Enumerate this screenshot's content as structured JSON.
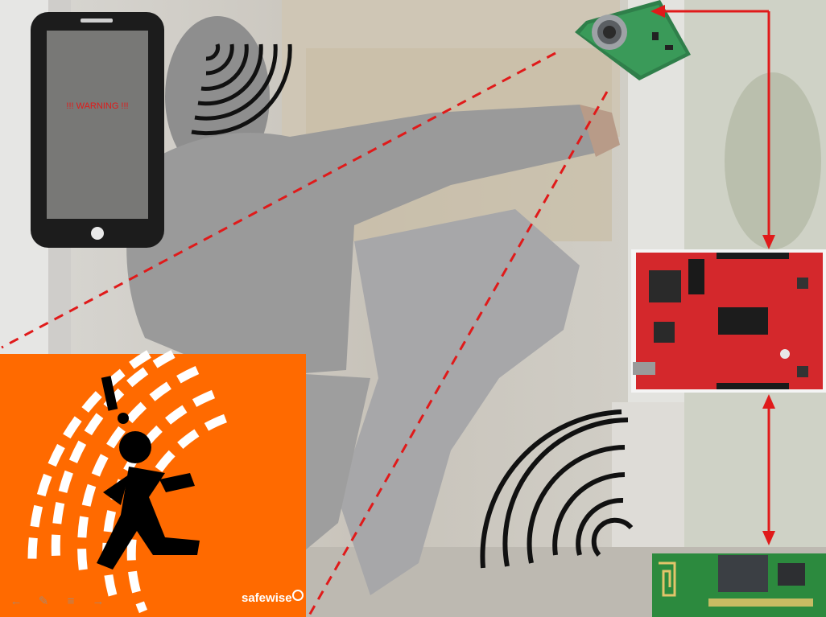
{
  "phone": {
    "screen_text": "!!! WARNING !!!"
  },
  "sign": {
    "brand_text": "safewise"
  },
  "colors": {
    "alert_red": "#e01a1a",
    "orange": "#ff6a00",
    "board_red": "#d4282c",
    "bt_green": "#2c8a3e"
  },
  "slide_controls": [
    {
      "icon": "arrow-left-icon"
    },
    {
      "icon": "pen-icon"
    },
    {
      "icon": "menu-icon"
    },
    {
      "icon": "arrow-right-icon"
    }
  ]
}
